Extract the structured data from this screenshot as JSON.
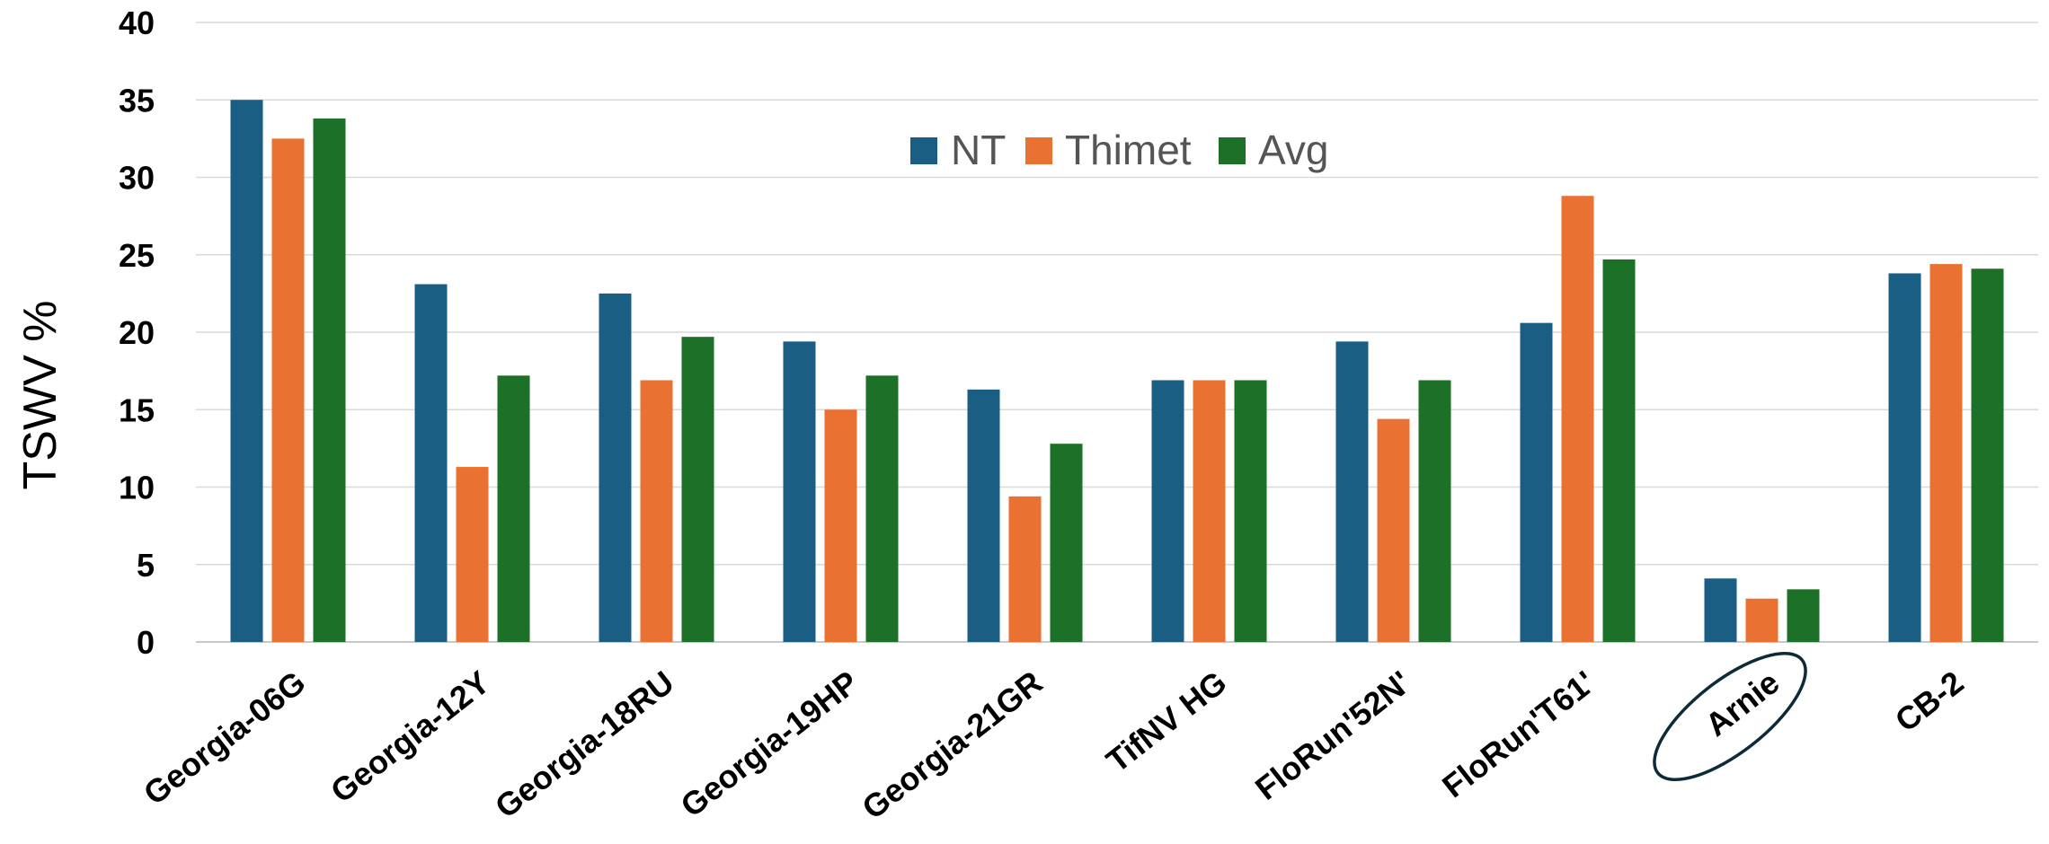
{
  "chart_data": {
    "type": "bar",
    "title": "",
    "xlabel": "",
    "ylabel": "TSWV %",
    "ylim": [
      0,
      40
    ],
    "yticks": [
      0,
      5,
      10,
      15,
      20,
      25,
      30,
      35,
      40
    ],
    "grid": true,
    "legend_position": "top-center",
    "categories": [
      "Georgia-06G",
      "Georgia-12Y",
      "Georgia-18RU",
      "Georgia-19HP",
      "Georgia-21GR",
      "TifNV HG",
      "FloRun'52N'",
      "FloRun'T61'",
      "Arnie",
      "CB-2"
    ],
    "highlighted_category": "Arnie",
    "series": [
      {
        "name": "NT",
        "color": "#1a5e84",
        "values": [
          35.0,
          23.1,
          22.5,
          19.4,
          16.3,
          16.9,
          19.4,
          20.6,
          4.1,
          23.8
        ]
      },
      {
        "name": "Thimet",
        "color": "#e97132",
        "values": [
          32.5,
          11.3,
          16.9,
          15.0,
          9.4,
          16.9,
          14.4,
          28.8,
          2.8,
          24.4
        ]
      },
      {
        "name": "Avg",
        "color": "#1d7027",
        "values": [
          33.8,
          17.2,
          19.7,
          17.2,
          12.8,
          16.9,
          16.9,
          24.7,
          3.4,
          24.1
        ]
      }
    ]
  }
}
